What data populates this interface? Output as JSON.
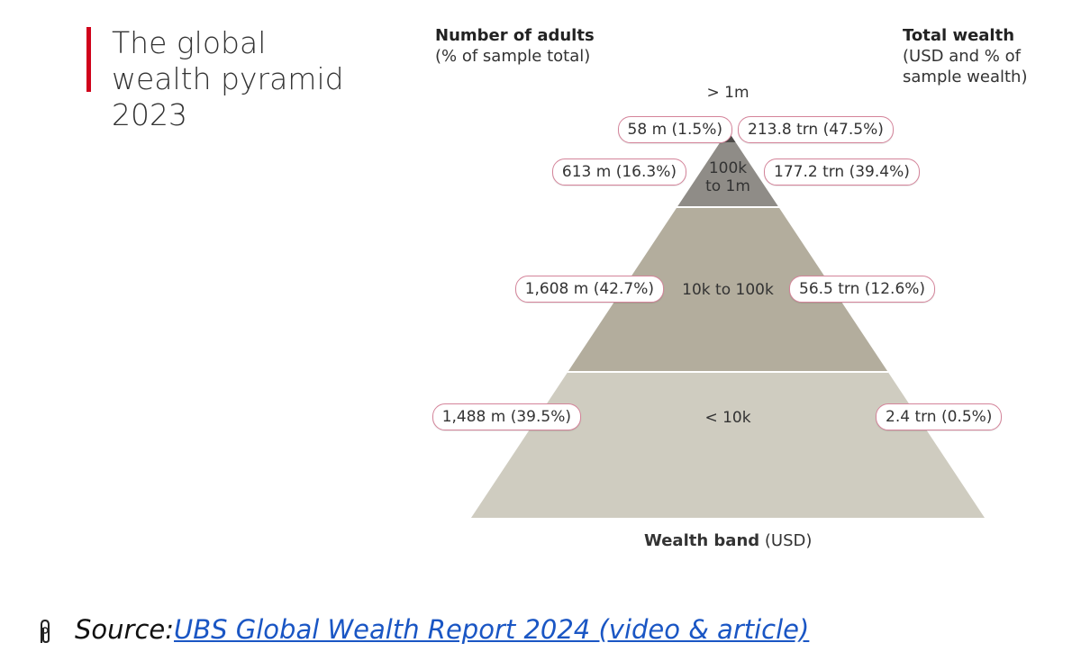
{
  "title": "The global wealth pyramid 2023",
  "left_header": {
    "title": "Number of adults",
    "subtitle": "(% of sample total)"
  },
  "right_header": {
    "title": "Total wealth",
    "subtitle": "(USD and % of sample wealth)"
  },
  "bands": [
    {
      "label": "> 1m",
      "adults": "58 m (1.5%)",
      "wealth": "213.8 trn (47.5%)"
    },
    {
      "label": "100k to 1m",
      "adults": "613 m (16.3%)",
      "wealth": "177.2 trn (39.4%)"
    },
    {
      "label": "10k to 100k",
      "adults": "1,608 m (42.7%)",
      "wealth": "56.5 trn (12.6%)"
    },
    {
      "label": "< 10k",
      "adults": "1,488 m (39.5%)",
      "wealth": "2.4 trn (0.5%)"
    }
  ],
  "axis_label": {
    "title": "Wealth band",
    "unit": "(USD)"
  },
  "source": {
    "prefix": "Source:",
    "link": "UBS Global Wealth Report 2024 (video & article)"
  }
}
